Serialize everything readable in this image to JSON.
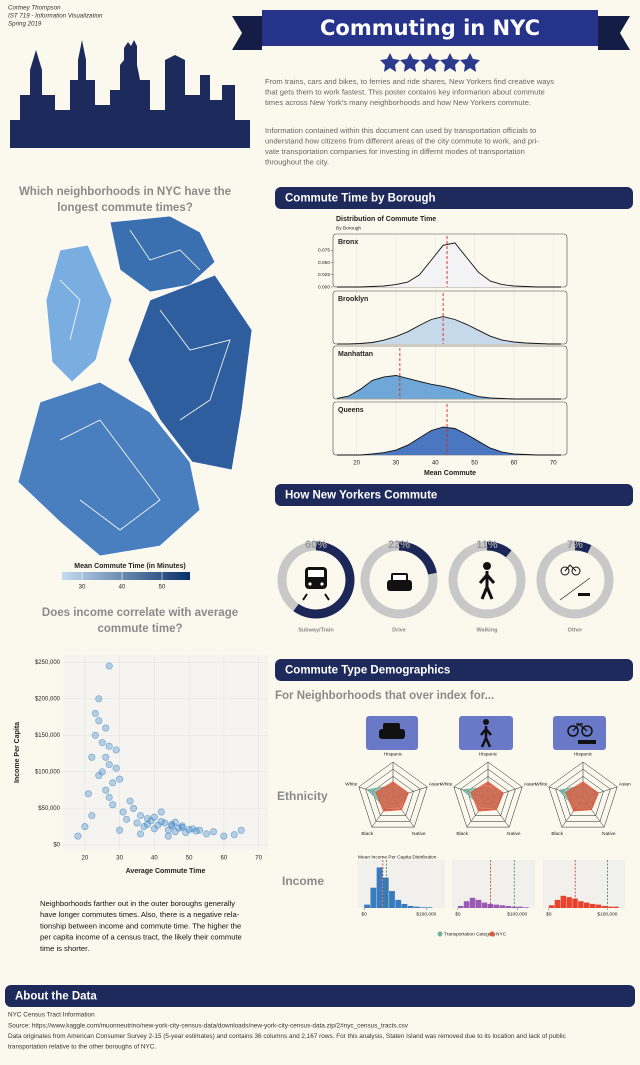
{
  "header": {
    "author": [
      "Cortney Thompson",
      "IST 719 - Information Visualization",
      "Spring 2019"
    ],
    "title": "Commuting in NYC"
  },
  "intro": [
    [
      "From trains, cars and bikes, to ferries and ride shares, New Yorkers find creative ways",
      "that gets them to work fastest. This poster contains key informarion about commute",
      "times across New York's many neighborhoods and how New Yorkers commute."
    ],
    [
      "Information contained within this document can used by transportation officials to",
      "understand how citizens from different areas of the city commute to work, and pri-",
      "vate transportation companies for investing in differnt modes of transportation",
      "throughout the city."
    ]
  ],
  "sections": [
    "Commute Time by Borough",
    "How New Yorkers Commute",
    "Commute Type Demographics",
    "About the Data"
  ],
  "demographics": {
    "subtitle": "For Neighborhoods that over index for...",
    "rows": [
      "Ethnicity",
      "Income"
    ]
  },
  "scatter_note": [
    "Neighborhoods farther out in the outer boroughs generally",
    "have longer commutes times. Also, there is a negative rela-",
    "tionship between income and commute time. The higher the",
    "per capita income of a census tract, the likely their commute",
    "time is shorter."
  ],
  "footer": [
    "NYC Census Tract Information",
    "Source: https://www.kaggle.com/muonneutrino/new-york-city-census-data/downloads/new-york-city-census-data.zip/2#nyc_census_tracts.csv",
    "Data originates from American Consumer Survey 2-15 (5-year estimates) and contains 36 columns and 2,167 rows. For this analysis, Staten Island was removed due to its location and lack of public",
    "transportation relative to the other boroughs of NYC."
  ],
  "chart_data": [
    {
      "type": "choropleth",
      "title": [
        "Which neighborhoods in NYC have the",
        "longest commute times?"
      ],
      "colorbar_label": "Mean Commute Time (in Minutes)",
      "lim": [
        25,
        57
      ],
      "ticks": [
        30,
        40,
        50
      ],
      "colors": [
        "#c6dbef",
        "#08306b"
      ]
    },
    {
      "type": "ridgeline",
      "title": "Distribution of Commute Time",
      "subtitle": "By Borough",
      "x_label": "Mean Commute",
      "x": [
        15,
        18,
        21,
        24,
        27,
        30,
        33,
        36,
        39,
        42,
        45,
        48,
        51,
        54,
        57,
        60,
        63,
        66,
        69,
        72
      ],
      "xlim": [
        14,
        73.5
      ],
      "xticks": [
        20,
        30,
        40,
        50,
        60,
        70
      ],
      "ylim": [
        0,
        0.1
      ],
      "yticks": [
        {
          "value": 0,
          "label": "0.000"
        },
        {
          "value": 0.025,
          "label": "0.025"
        },
        {
          "value": 0.05,
          "label": "0.050"
        },
        {
          "value": 0.075,
          "label": "0.075"
        }
      ],
      "mean_color": "#d7261e",
      "series": [
        {
          "name": "Bronx",
          "color": "#f3f3f5",
          "mean": 43,
          "values": [
            0,
            0,
            0,
            0.001,
            0.002,
            0.005,
            0.01,
            0.025,
            0.055,
            0.085,
            0.09,
            0.06,
            0.03,
            0.012,
            0.005,
            0.002,
            0.001,
            0,
            0,
            0
          ]
        },
        {
          "name": "Brooklyn",
          "color": "#c6d9ea",
          "mean": 42,
          "values": [
            0,
            0,
            0.001,
            0.003,
            0.008,
            0.015,
            0.025,
            0.038,
            0.05,
            0.056,
            0.05,
            0.04,
            0.028,
            0.016,
            0.008,
            0.004,
            0.002,
            0.001,
            0,
            0
          ]
        },
        {
          "name": "Manhattan",
          "color": "#6fa8d8",
          "mean": 31,
          "values": [
            0.001,
            0.006,
            0.02,
            0.038,
            0.045,
            0.048,
            0.042,
            0.036,
            0.03,
            0.026,
            0.02,
            0.012,
            0.005,
            0.002,
            0.001,
            0,
            0,
            0,
            0,
            0
          ]
        },
        {
          "name": "Queens",
          "color": "#4a77c0",
          "mean": 43,
          "values": [
            0,
            0,
            0,
            0.002,
            0.005,
            0.01,
            0.02,
            0.035,
            0.05,
            0.057,
            0.054,
            0.042,
            0.028,
            0.014,
            0.006,
            0.002,
            0.001,
            0,
            0,
            0
          ]
        }
      ]
    },
    {
      "type": "donut",
      "categories": [
        "Subway/Train",
        "Drive",
        "Walking",
        "Other"
      ],
      "values": [
        60,
        22,
        11,
        7
      ],
      "value_labels": [
        "60%",
        "22%",
        "11%",
        "7%"
      ],
      "color": "#1d2757",
      "track_color": "#c8c8c8"
    },
    {
      "type": "scatter",
      "title": [
        "Does income correlate with average",
        "commute time?"
      ],
      "x_label": "Average Commute Time",
      "y_label": "Income Per Capita",
      "color": "#3f86c8",
      "xlim": [
        13.7,
        72.7
      ],
      "ylim": [
        -7000,
        260000
      ],
      "xticks": [
        20,
        30,
        40,
        50,
        60,
        70
      ],
      "yticks": [
        {
          "value": 0,
          "label": "$0"
        },
        {
          "value": 50000,
          "label": "$50,000"
        },
        {
          "value": 100000,
          "label": "$100,000"
        },
        {
          "value": 150000,
          "label": "$150,000"
        },
        {
          "value": 200000,
          "label": "$200,000"
        },
        {
          "value": 250000,
          "label": "$250,000"
        }
      ],
      "x": [
        22,
        23,
        24,
        25,
        26,
        27,
        28,
        24,
        26,
        29,
        25,
        27,
        23,
        30,
        28,
        21,
        22,
        26,
        33,
        31,
        24,
        27,
        29,
        32,
        35,
        37,
        38,
        40,
        42,
        44,
        45,
        46,
        48,
        50,
        52,
        36,
        39,
        41,
        43,
        47,
        49,
        51,
        53,
        55,
        57,
        60,
        63,
        38,
        42,
        45,
        34,
        36,
        44,
        46,
        40,
        48,
        30,
        18,
        20,
        65,
        27
      ],
      "values": [
        120000,
        180000,
        95000,
        140000,
        160000,
        110000,
        85000,
        200000,
        75000,
        130000,
        100000,
        65000,
        150000,
        90000,
        55000,
        70000,
        40000,
        120000,
        60000,
        45000,
        170000,
        135000,
        105000,
        35000,
        30000,
        25000,
        28000,
        22000,
        32000,
        20000,
        26000,
        18000,
        24000,
        21000,
        19000,
        40000,
        33000,
        27000,
        30000,
        23000,
        17000,
        22000,
        20000,
        15000,
        18000,
        12000,
        14000,
        36000,
        45000,
        28000,
        50000,
        15000,
        12000,
        31000,
        38000,
        26000,
        20000,
        12000,
        25000,
        20000,
        245000
      ]
    },
    {
      "type": "radar",
      "axes": [
        "Hispanic",
        "Asian",
        "Native",
        "Black",
        "White"
      ],
      "rlim": [
        0,
        1
      ],
      "series": [
        {
          "name": "Transportation Category",
          "color": "#6fb3a0"
        },
        {
          "name": "NYC",
          "color": "#e0553a"
        }
      ],
      "panels": [
        {
          "values": [
            [
              0.35,
              0.4,
              0.3,
              0.35,
              0.75
            ],
            [
              0.45,
              0.45,
              0.4,
              0.45,
              0.5
            ]
          ]
        },
        {
          "values": [
            [
              0.3,
              0.45,
              0.35,
              0.3,
              0.75
            ],
            [
              0.45,
              0.45,
              0.4,
              0.45,
              0.5
            ]
          ]
        },
        {
          "values": [
            [
              0.35,
              0.45,
              0.35,
              0.35,
              0.7
            ],
            [
              0.45,
              0.45,
              0.4,
              0.45,
              0.5
            ]
          ]
        }
      ]
    },
    {
      "type": "histogram",
      "title": "Mean Income Per Capita Distribution",
      "bins": [
        0,
        10000,
        20000,
        30000,
        40000,
        50000,
        60000,
        70000,
        80000,
        90000,
        100000,
        110000,
        120000
      ],
      "xlim": [
        -10000,
        130000
      ],
      "ylim": [
        0,
        65
      ],
      "xticks": [
        {
          "value": 0,
          "label": "$0"
        },
        {
          "value": 100000,
          "label": "$100,000"
        }
      ],
      "panels": [
        {
          "color": "#3a7bbf",
          "counts": [
            5,
            30,
            60,
            45,
            25,
            12,
            6,
            3,
            2,
            1,
            1,
            0
          ],
          "reference_lines": [
            {
              "value": 30000,
              "color": "#c0392b"
            },
            {
              "value": 36000,
              "color": "#2e8b3a"
            }
          ]
        },
        {
          "color": "#9b59b6",
          "counts": [
            3,
            10,
            15,
            12,
            8,
            6,
            5,
            4,
            3,
            2,
            2,
            1
          ],
          "reference_lines": [
            {
              "value": 55000,
              "color": "#c0392b"
            },
            {
              "value": 95000,
              "color": "#2e8b3a"
            }
          ]
        },
        {
          "color": "#e8432e",
          "counts": [
            4,
            12,
            18,
            16,
            14,
            10,
            8,
            6,
            5,
            3,
            2,
            2
          ],
          "reference_lines": [
            {
              "value": 45000,
              "color": "#c0392b"
            },
            {
              "value": 100000,
              "color": "#2e8b3a"
            }
          ]
        }
      ]
    }
  ]
}
